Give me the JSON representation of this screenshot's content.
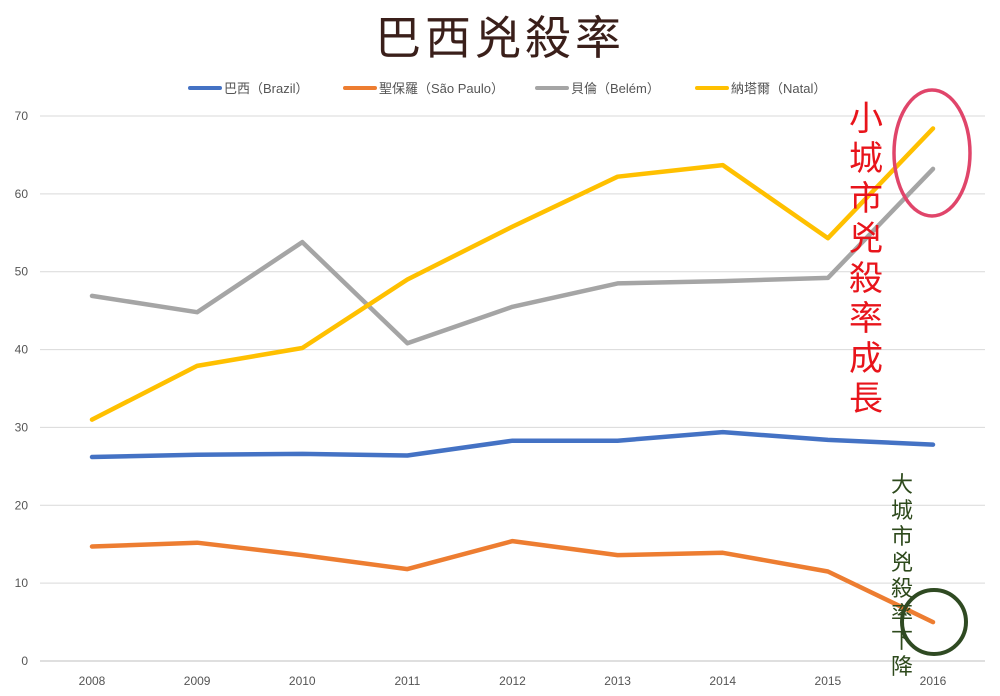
{
  "chart_data": {
    "type": "line",
    "title": "巴西兇殺率",
    "x": [
      2008,
      2009,
      2010,
      2011,
      2012,
      2013,
      2014,
      2015,
      2016
    ],
    "ylim": [
      0,
      70
    ],
    "yticks": [
      0,
      10,
      20,
      30,
      40,
      50,
      60,
      70
    ],
    "grid": true,
    "legend_position": "top",
    "series": [
      {
        "name": "巴西（Brazil）",
        "color": "#4472c4",
        "values": [
          26.2,
          26.5,
          26.6,
          26.4,
          28.3,
          28.3,
          29.4,
          28.4,
          27.8
        ]
      },
      {
        "name": "聖保羅（São Paulo）",
        "color": "#ed7d31",
        "values": [
          14.7,
          15.2,
          13.6,
          11.8,
          15.4,
          13.6,
          13.9,
          11.5,
          5.0
        ]
      },
      {
        "name": "貝倫（Belém）",
        "color": "#a5a5a5",
        "values": [
          46.9,
          44.8,
          53.8,
          40.8,
          45.5,
          48.5,
          48.8,
          49.2,
          63.2
        ]
      },
      {
        "name": "納塔爾（Natal）",
        "color": "#ffc000",
        "values": [
          31.0,
          37.9,
          40.2,
          49.0,
          55.8,
          62.2,
          63.7,
          54.3,
          68.4
        ]
      }
    ],
    "annotations": [
      {
        "text": "小城市兇殺率成長",
        "color": "#e8141b",
        "target_series": "納塔爾（Natal）"
      },
      {
        "text": "大城市兇殺率下降",
        "color": "#2e4a1c",
        "target_series": "聖保羅（São Paulo）"
      }
    ]
  }
}
